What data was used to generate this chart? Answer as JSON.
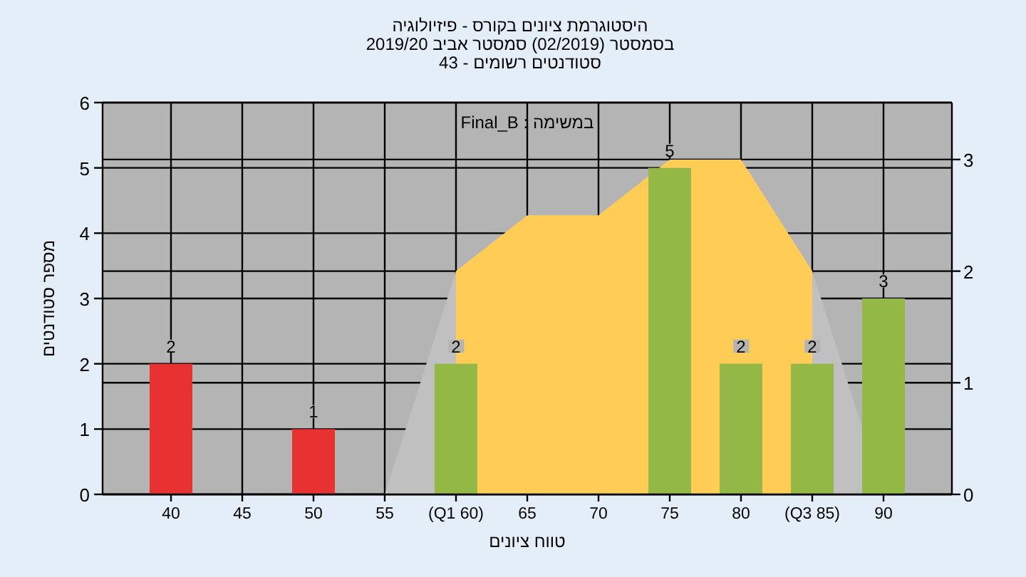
{
  "chart_data": {
    "type": "bar",
    "title": "היסטוגרמת ציונים בקורס - פיזיולוגיה",
    "subtitle": [
      "בסמסטר (02/2019) סמסטר אביב 2019/20",
      "סטודנטים רשומים - 43"
    ],
    "xlabel": "טווח ציונים",
    "ylabel": "מספר סטודנטים",
    "annotations": [
      "במשימה : Final_B"
    ],
    "categories": [
      "40",
      "45",
      "50",
      "55",
      "(Q1 60)",
      "65",
      "70",
      "75",
      "80",
      "(Q3 85)",
      "90"
    ],
    "series": [
      {
        "type": "area",
        "axis": "y2",
        "color": "#c0c0c0",
        "x": [
          "55",
          "(Q1 60)"
        ],
        "values": [
          0,
          2
        ]
      },
      {
        "type": "area",
        "axis": "y2",
        "color": "#ffcc55",
        "x": [
          "(Q1 60)",
          "65",
          "70",
          "75",
          "80",
          "(Q3 85)"
        ],
        "values": [
          2,
          2.5,
          2.5,
          3,
          3,
          2
        ]
      },
      {
        "type": "area",
        "axis": "y2",
        "color": "#c0c0c0",
        "x": [
          "(Q3 85)",
          "90"
        ],
        "values": [
          2,
          0
        ]
      },
      {
        "colors": [
          "#e83232",
          "#e83232",
          "#e83232",
          "#e83232",
          "#94b846",
          "#94b846",
          "#94b846",
          "#94b846",
          "#94b846",
          "#94b846",
          "#94b846"
        ],
        "values": [
          2,
          0,
          1,
          0,
          2,
          0,
          0,
          5,
          2,
          2,
          3
        ],
        "value_labels": [
          "2",
          null,
          "1",
          null,
          "2",
          null,
          null,
          "5",
          "2",
          "2",
          "3"
        ]
      }
    ],
    "ylim": [
      0,
      6
    ],
    "yticks": [
      0,
      1,
      2,
      3,
      4,
      5,
      6
    ],
    "y2lim": [
      0,
      3.51
    ],
    "y2ticks": [
      0,
      1,
      2,
      3
    ],
    "grid": true,
    "legend": false
  }
}
